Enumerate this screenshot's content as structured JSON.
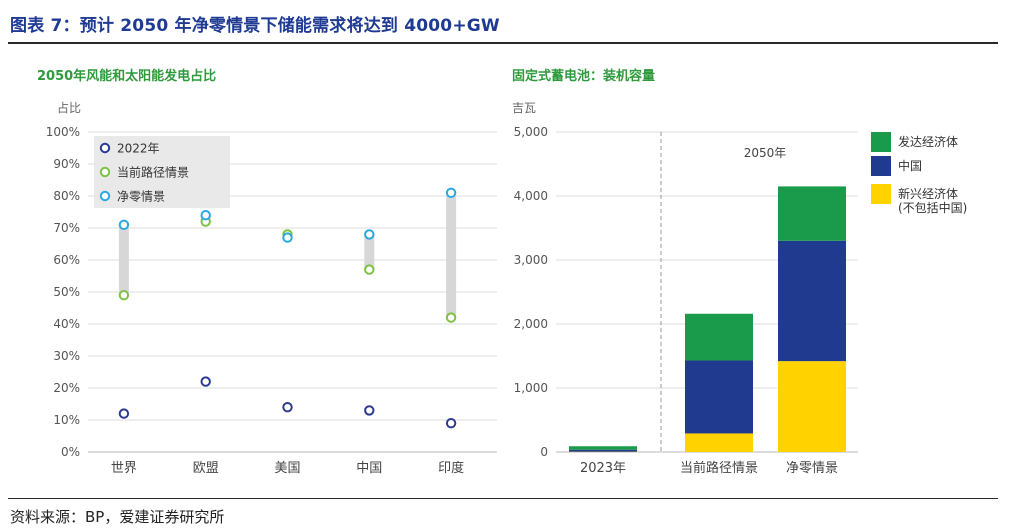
{
  "figure": {
    "title": "图表 7：预计 2050 年净零情景下储能需求将达到 4000+GW",
    "source": "资料来源：BP，爱建证券研究所"
  },
  "colors": {
    "title_blue": "#1f3a93",
    "chart_title_green": "#2e9a3c",
    "marker_2022": "#2b3a8f",
    "marker_current": "#7dc142",
    "marker_netzero": "#2aa8df",
    "range_bar": "#d7d7d7",
    "developed": "#1a9a4b",
    "china": "#203a8f",
    "emerging": "#ffd200"
  },
  "chart_data": [
    {
      "type": "scatter",
      "title": "2050年风能和太阳能发电占比",
      "ylabel": "占比",
      "ylim": [
        0,
        100
      ],
      "y_ticks": [
        "0%",
        "10%",
        "20%",
        "30%",
        "40%",
        "50%",
        "60%",
        "70%",
        "80%",
        "90%",
        "100%"
      ],
      "categories": [
        "世界",
        "欧盟",
        "美国",
        "中国",
        "印度"
      ],
      "series": [
        {
          "name": "2022年",
          "values": [
            12,
            22,
            14,
            13,
            9
          ]
        },
        {
          "name": "当前路径情景",
          "values": [
            49,
            72,
            68,
            57,
            42
          ]
        },
        {
          "name": "净零情景",
          "values": [
            71,
            74,
            67,
            68,
            81
          ]
        }
      ],
      "grid": true,
      "legend_position": "top-left"
    },
    {
      "type": "bar",
      "stacked": true,
      "title": "固定式蓄电池：装机容量",
      "ylabel": "吉瓦",
      "ylim": [
        0,
        5000
      ],
      "y_ticks": [
        "0",
        "1,000",
        "2,000",
        "3,000",
        "4,000",
        "5,000"
      ],
      "categories": [
        "2023年",
        "当前路径情景",
        "净零情景"
      ],
      "group_label": "2050年",
      "series": [
        {
          "name": "新兴经济体\n(不包括中国)",
          "values": [
            5,
            290,
            1420
          ]
        },
        {
          "name": "中国",
          "values": [
            30,
            1140,
            1880
          ]
        },
        {
          "name": "发达经济体",
          "values": [
            55,
            730,
            850
          ]
        }
      ],
      "legend_order": [
        "发达经济体",
        "中国",
        "新兴经济体\n(不包括中国)"
      ],
      "grid": true,
      "legend_position": "right"
    }
  ]
}
